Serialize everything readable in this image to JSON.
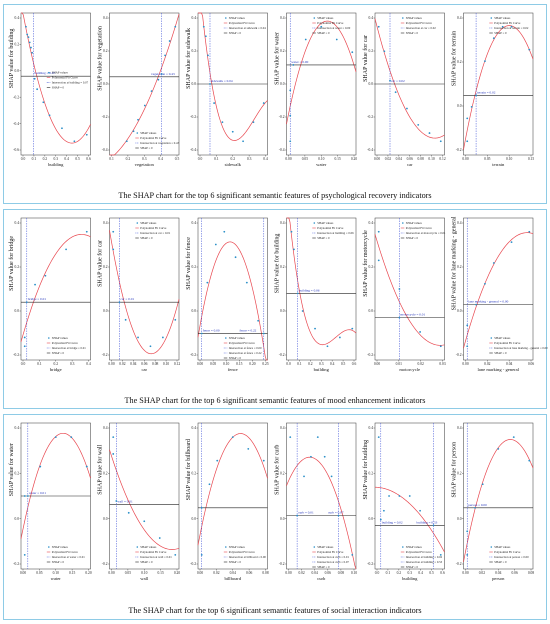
{
  "colors": {
    "points": "#2a8fc8",
    "curve": "#e8474f",
    "interaction": "#3b4fd6",
    "zero_line": "#222222",
    "frame": "#8ecbe6"
  },
  "legend": {
    "points": "SHAP values",
    "curve": "Polynomial Fit Curve",
    "zero": "SHAP = 0"
  },
  "rows": [
    {
      "title": "The SHAP chart for the top 6 significant semantic features of psychological recovery indicators",
      "charts": [
        {
          "feature": "building",
          "ylabel": "SHAP value for building",
          "xticks": [
            "0.0",
            "0.1",
            "0.2",
            "0.3",
            "0.4",
            "0.5",
            "0.6"
          ],
          "yticks": [
            "0.4",
            "0.2",
            "0.0",
            "-0.2",
            "-0.4",
            "-0.6"
          ],
          "interaction_label": "Intersection at building = 0.07",
          "annotations": [
            "building = 0.07"
          ],
          "legend_pos": "middle"
        },
        {
          "feature": "vegetation",
          "ylabel": "SHAP value for vegetation",
          "xticks": [
            "0.1",
            "0.2",
            "0.3",
            "0.4",
            "0.5"
          ],
          "yticks": [
            "0.4",
            "0.2",
            "0.0",
            "-0.2",
            "-0.4"
          ],
          "interaction_label": "Intersection at vegetation = 0.43",
          "annotations": [
            "vegetation = 0.43"
          ],
          "legend_pos": "bottom"
        },
        {
          "feature": "sidewalk",
          "ylabel": "SHAP value for sidewalk",
          "xticks": [
            "0.0",
            "0.1",
            "0.2",
            "0.3",
            "0.4"
          ],
          "yticks": [
            "0.4",
            "0.2",
            "0.0",
            "-0.2",
            "-0.4"
          ],
          "interaction_label": "Intersection at sidewalk = 0.04",
          "annotations": [
            "sidewalk = 0.04"
          ],
          "legend_pos": "top"
        },
        {
          "feature": "water",
          "ylabel": "SHAP value for water",
          "xticks": [
            "0.00",
            "0.05",
            "0.10",
            "0.15",
            "0.20"
          ],
          "yticks": [
            "0.4",
            "0.2",
            "0.0",
            "-0.2",
            "-0.4"
          ],
          "interaction_label": "Intersection at water = 0.00",
          "annotations": [
            "water = 0.00"
          ],
          "legend_pos": "top"
        },
        {
          "feature": "car",
          "ylabel": "SHAP value for car",
          "xticks": [
            "0.00",
            "0.02",
            "0.04",
            "0.06",
            "0.08",
            "0.10",
            "0.12"
          ],
          "yticks": [
            "0.4",
            "0.2",
            "0.0",
            "-0.2",
            "-0.4"
          ],
          "interaction_label": "Intersection at car = 0.02",
          "annotations": [
            "car = 0.02"
          ],
          "legend_pos": "top"
        },
        {
          "feature": "terrain",
          "ylabel": "SHAP value for terrain",
          "xticks": [
            "0.00",
            "0.05",
            "0.10",
            "0.15"
          ],
          "yticks": [
            "0.4",
            "0.2",
            "0.0",
            "-0.2"
          ],
          "interaction_label": "Intersection at terrain = 0.02",
          "annotations": [
            "terrain = 0.02"
          ],
          "legend_pos": "top"
        }
      ]
    },
    {
      "title": "The SHAP chart for the top 6 significant semantic features of mood enhancement indicators",
      "charts": [
        {
          "feature": "bridge",
          "ylabel": "SHAP value for bridge",
          "xticks": [
            "0.0",
            "0.1",
            "0.2",
            "0.3",
            "0.4"
          ],
          "yticks": [
            "0.4",
            "0.2",
            "0.0",
            "-0.2"
          ],
          "interaction_label": "Intersection at bridge = 0.01",
          "annotations": [
            "bridge = 0.01"
          ],
          "legend_pos": "bottom"
        },
        {
          "feature": "car",
          "ylabel": "SHAP value for car",
          "xticks": [
            "0.00",
            "0.02",
            "0.04",
            "0.06",
            "0.08",
            "0.10",
            "0.12"
          ],
          "yticks": [
            "0.4",
            "0.2",
            "0.0",
            "-0.2"
          ],
          "interaction_label": "Intersection at car = 0.01",
          "annotations": [
            "car = 0.01"
          ],
          "legend_pos": "top"
        },
        {
          "feature": "fence",
          "ylabel": "SHAP value for fence",
          "xticks": [
            "0.00",
            "0.05",
            "0.10",
            "0.15",
            "0.20",
            "0.25"
          ],
          "yticks": [
            "0.4",
            "0.2",
            "0.0",
            "-0.2"
          ],
          "interaction_label": "Intersection at fence = 0.00",
          "annotations": [
            "fence = 0.00",
            "fence = 0.22"
          ],
          "extra_interaction_label": "Intersection at fence = 0.22",
          "legend_pos": "bottom"
        },
        {
          "feature": "building",
          "ylabel": "SHAP value for building",
          "xticks": [
            "0.0",
            "0.1",
            "0.2",
            "0.3",
            "0.4",
            "0.5",
            "0.6"
          ],
          "yticks": [
            "0.4",
            "0.2",
            "0.0",
            "-0.2"
          ],
          "interaction_label": "Intersection at building = 0.06",
          "annotations": [
            "building = 0.06"
          ],
          "legend_pos": "top"
        },
        {
          "feature": "motorcycle",
          "ylabel": "SHAP value for motorcycle",
          "xticks": [
            "0.00",
            "0.01",
            "0.02",
            "0.03"
          ],
          "yticks": [
            "0.4",
            "0.2",
            "0.0",
            "-0.2"
          ],
          "interaction_label": "Intersection at motorcycle = 0.01",
          "annotations": [
            "motorcycle = 0.01"
          ],
          "legend_pos": "top"
        },
        {
          "feature": "lane marking - general",
          "ylabel": "SHAP value for lane marking - general",
          "xticks": [
            "0.00",
            "0.02",
            "0.04",
            "0.06"
          ],
          "yticks": [
            "0.4",
            "0.2",
            "0.0",
            "-0.2"
          ],
          "interaction_label": "Intersection at lane marking - general = 0.00",
          "annotations": [
            "lane marking - general = 0.00"
          ],
          "legend_pos": "bottom"
        }
      ]
    },
    {
      "title": "The SHAP chart for the top 6 significant semantic features of social interaction indicators",
      "charts": [
        {
          "feature": "water",
          "ylabel": "SHAP value for water",
          "xticks": [
            "0.00",
            "0.05",
            "0.10",
            "0.15",
            "0.20"
          ],
          "yticks": [
            "0.4",
            "0.2",
            "0.0",
            "-0.2"
          ],
          "interaction_label": "Intersection at water = 0.01",
          "annotations": [
            "water = 0.01"
          ],
          "legend_pos": "bottom"
        },
        {
          "feature": "wall",
          "ylabel": "SHAP value for wall",
          "xticks": [
            "0.00",
            "0.05",
            "0.10",
            "0.15",
            "0.20"
          ],
          "yticks": [
            "0.4",
            "0.2",
            "0.0",
            "-0.2"
          ],
          "interaction_label": "Intersection at wall = 0.01",
          "annotations": [
            "wall = 0.01"
          ],
          "legend_pos": "bottom"
        },
        {
          "feature": "billboard",
          "ylabel": "SHAP value for billboard",
          "xticks": [
            "0.00",
            "0.02",
            "0.04",
            "0.06",
            "0.08"
          ],
          "yticks": [
            "0.4",
            "0.2",
            "0.0",
            "-0.2"
          ],
          "interaction_label": "Intersection at billboard = 0.00",
          "annotations": [],
          "legend_pos": "bottom"
        },
        {
          "feature": "curb",
          "ylabel": "SHAP value for curb",
          "xticks": [
            "0.00",
            "0.02",
            "0.04",
            "0.06",
            "0.08",
            "0.10"
          ],
          "yticks": [
            "0.4",
            "0.2",
            "0.0",
            "-0.2"
          ],
          "interaction_label": "Intersection at curb = 0.01",
          "annotations": [
            "curb = 0.01",
            "curb = 0.07"
          ],
          "extra_interaction_label": "Intersection at curb = 0.07",
          "legend_pos": "bottom"
        },
        {
          "feature": "building",
          "ylabel": "SHAP value for building",
          "xticks": [
            "0.0",
            "0.1",
            "0.2",
            "0.3",
            "0.4",
            "0.5",
            "0.6"
          ],
          "yticks": [
            "0.4",
            "0.2",
            "0.0",
            "-0.2"
          ],
          "interaction_label": "Intersection at building = 0.02",
          "annotations": [
            "building = 0.02",
            "building = 0.53"
          ],
          "extra_interaction_label": "Intersection at building = 0.53",
          "legend_pos": "bottom"
        },
        {
          "feature": "person",
          "ylabel": "SHAP value for person",
          "xticks": [
            "0.00",
            "0.02",
            "0.04",
            "0.06",
            "0.08"
          ],
          "yticks": [
            "0.4",
            "0.2",
            "0.0",
            "-0.2"
          ],
          "interaction_label": "Intersection at person = 0.00",
          "annotations": [
            "person = 0.00"
          ],
          "legend_pos": "bottom"
        }
      ]
    }
  ],
  "chart_data": [
    {
      "type": "scatter",
      "title": "",
      "xlabel": "building",
      "ylabel": "SHAP value for building",
      "x": [
        0.01,
        0.02,
        0.03,
        0.04,
        0.05,
        0.06,
        0.08,
        0.1,
        0.15,
        0.2,
        0.3,
        0.4,
        0.5
      ],
      "y": [
        0.38,
        0.32,
        0.3,
        0.26,
        0.22,
        0.18,
        -0.02,
        -0.1,
        -0.2,
        -0.3,
        -0.4,
        -0.5,
        -0.45
      ],
      "intersection_x": [
        0.07
      ],
      "curve": "quadratic"
    },
    {
      "type": "scatter",
      "title": "",
      "xlabel": "vegetation",
      "ylabel": "SHAP value for vegetation",
      "x": [
        0.12,
        0.18,
        0.22,
        0.28,
        0.34,
        0.4,
        0.43,
        0.46,
        0.5,
        0.55
      ],
      "y": [
        -0.45,
        -0.38,
        -0.3,
        -0.2,
        -0.1,
        -0.02,
        0.02,
        0.15,
        0.25,
        0.35
      ],
      "intersection_x": [
        0.43
      ],
      "curve": "quadratic"
    },
    {
      "type": "scatter",
      "title": "",
      "xlabel": "sidewalk",
      "ylabel": "SHAP value for sidewalk",
      "x": [
        0.01,
        0.02,
        0.03,
        0.04,
        0.06,
        0.1,
        0.15,
        0.2,
        0.25,
        0.3
      ],
      "y": [
        0.3,
        0.25,
        0.15,
        0.0,
        -0.1,
        -0.2,
        -0.25,
        -0.3,
        -0.2,
        -0.1
      ],
      "intersection_x": [
        0.04
      ],
      "curve": "cubic"
    },
    {
      "type": "scatter",
      "title": "",
      "xlabel": "water",
      "ylabel": "SHAP value for water",
      "x": [
        0.0,
        0.0,
        0.0,
        0.01,
        0.05,
        0.1,
        0.15,
        0.2
      ],
      "y": [
        -0.3,
        -0.2,
        -0.1,
        0.0,
        0.1,
        0.15,
        0.1,
        0.05
      ],
      "intersection_x": [
        0.0
      ],
      "curve": "quadratic"
    },
    {
      "type": "scatter",
      "title": "",
      "xlabel": "car",
      "ylabel": "SHAP value for car",
      "x": [
        0.0,
        0.01,
        0.02,
        0.03,
        0.05,
        0.07,
        0.09,
        0.11
      ],
      "y": [
        0.35,
        0.2,
        0.02,
        -0.05,
        -0.15,
        -0.25,
        -0.3,
        -0.35
      ],
      "intersection_x": [
        0.02
      ],
      "curve": "quadratic"
    },
    {
      "type": "scatter",
      "title": "",
      "xlabel": "terrain",
      "ylabel": "SHAP value for terrain",
      "x": [
        0.0,
        0.0,
        0.01,
        0.02,
        0.04,
        0.06,
        0.08,
        0.1,
        0.14
      ],
      "y": [
        -0.2,
        -0.1,
        -0.05,
        0.0,
        0.15,
        0.25,
        0.3,
        0.3,
        0.2
      ],
      "intersection_x": [
        0.02
      ],
      "curve": "quadratic"
    },
    {
      "type": "scatter",
      "title": "",
      "xlabel": "bridge",
      "ylabel": "SHAP value for bridge",
      "x": [
        0.0,
        0.0,
        0.01,
        0.05,
        0.1,
        0.2,
        0.3
      ],
      "y": [
        -0.25,
        -0.2,
        0.0,
        0.1,
        0.15,
        0.3,
        0.4
      ],
      "intersection_x": [
        0.01
      ],
      "curve": "quadratic"
    },
    {
      "type": "scatter",
      "title": "",
      "xlabel": "car",
      "ylabel": "SHAP value for car",
      "x": [
        0.0,
        0.0,
        0.01,
        0.02,
        0.04,
        0.06,
        0.08,
        0.1
      ],
      "y": [
        0.4,
        0.3,
        0.0,
        -0.1,
        -0.2,
        -0.25,
        -0.2,
        -0.1
      ],
      "intersection_x": [
        0.01
      ],
      "curve": "quadratic"
    },
    {
      "type": "scatter",
      "title": "",
      "xlabel": "fence",
      "ylabel": "SHAP value for fence",
      "x": [
        0.0,
        0.02,
        0.05,
        0.08,
        0.12,
        0.16,
        0.2,
        0.22
      ],
      "y": [
        0.0,
        0.2,
        0.35,
        0.4,
        0.3,
        0.2,
        0.05,
        0.0
      ],
      "intersection_x": [
        0.0,
        0.22
      ],
      "curve": "quadratic"
    },
    {
      "type": "scatter",
      "title": "",
      "xlabel": "building",
      "ylabel": "SHAP value for building",
      "x": [
        0.01,
        0.03,
        0.06,
        0.1,
        0.2,
        0.3,
        0.4,
        0.5
      ],
      "y": [
        0.35,
        0.25,
        0.0,
        -0.1,
        -0.2,
        -0.3,
        -0.25,
        -0.2
      ],
      "intersection_x": [
        0.06
      ],
      "curve": "cubic"
    },
    {
      "type": "scatter",
      "title": "",
      "xlabel": "motorcycle",
      "ylabel": "SHAP value for motorcycle",
      "x": [
        0.0,
        0.0,
        0.01,
        0.01,
        0.02,
        0.03
      ],
      "y": [
        0.3,
        0.2,
        0.1,
        0.0,
        -0.05,
        -0.1
      ],
      "intersection_x": [
        0.01
      ],
      "curve": "quadratic"
    },
    {
      "type": "scatter",
      "title": "",
      "xlabel": "lane marking - general",
      "ylabel": "SHAP value for lane marking - general",
      "x": [
        0.0,
        0.0,
        0.01,
        0.02,
        0.03,
        0.05,
        0.07
      ],
      "y": [
        -0.2,
        -0.1,
        0.0,
        0.1,
        0.2,
        0.3,
        0.35
      ],
      "intersection_x": [
        0.0
      ],
      "curve": "quadratic"
    },
    {
      "type": "scatter",
      "title": "",
      "xlabel": "water",
      "ylabel": "SHAP value for water",
      "x": [
        0.0,
        0.0,
        0.01,
        0.05,
        0.1,
        0.15,
        0.2
      ],
      "y": [
        -0.1,
        0.0,
        0.0,
        0.05,
        0.1,
        0.1,
        0.05
      ],
      "intersection_x": [
        0.01
      ],
      "curve": "quadratic"
    },
    {
      "type": "scatter",
      "title": "",
      "xlabel": "wall",
      "ylabel": "SHAP value for wall",
      "x": [
        0.0,
        0.0,
        0.01,
        0.05,
        0.1,
        0.15,
        0.2
      ],
      "y": [
        0.4,
        0.3,
        0.02,
        -0.05,
        -0.1,
        -0.2,
        -0.3
      ],
      "intersection_x": [
        0.01
      ],
      "curve": "quadratic"
    },
    {
      "type": "scatter",
      "title": "",
      "xlabel": "billboard",
      "ylabel": "SHAP value for billboard",
      "x": [
        0.0,
        0.0,
        0.01,
        0.02,
        0.04,
        0.06,
        0.08
      ],
      "y": [
        -0.2,
        0.0,
        0.1,
        0.2,
        0.3,
        0.25,
        0.2
      ],
      "intersection_x": [
        0.0
      ],
      "curve": "quadratic"
    },
    {
      "type": "scatter",
      "title": "",
      "xlabel": "curb",
      "ylabel": "SHAP value for curb",
      "x": [
        0.0,
        0.01,
        0.02,
        0.03,
        0.04,
        0.05,
        0.06,
        0.07,
        0.09
      ],
      "y": [
        0.2,
        0.0,
        0.1,
        0.15,
        0.2,
        0.15,
        0.1,
        0.0,
        -0.1
      ],
      "intersection_x": [
        0.01,
        0.07
      ],
      "curve": "quadratic"
    },
    {
      "type": "scatter",
      "title": "",
      "xlabel": "building",
      "ylabel": "SHAP value for building",
      "x": [
        0.0,
        0.02,
        0.05,
        0.1,
        0.2,
        0.3,
        0.4,
        0.53,
        0.6
      ],
      "y": [
        0.3,
        0.02,
        0.05,
        0.1,
        0.1,
        0.1,
        0.05,
        0.0,
        -0.1
      ],
      "intersection_x": [
        0.02,
        0.53
      ],
      "curve": "quadratic"
    },
    {
      "type": "scatter",
      "title": "",
      "xlabel": "person",
      "ylabel": "SHAP value for person",
      "x": [
        0.0,
        0.0,
        0.01,
        0.02,
        0.04,
        0.06,
        0.08
      ],
      "y": [
        -0.2,
        -0.1,
        0.0,
        0.1,
        0.25,
        0.3,
        0.2
      ],
      "intersection_x": [
        0.0
      ],
      "curve": "quadratic"
    }
  ]
}
